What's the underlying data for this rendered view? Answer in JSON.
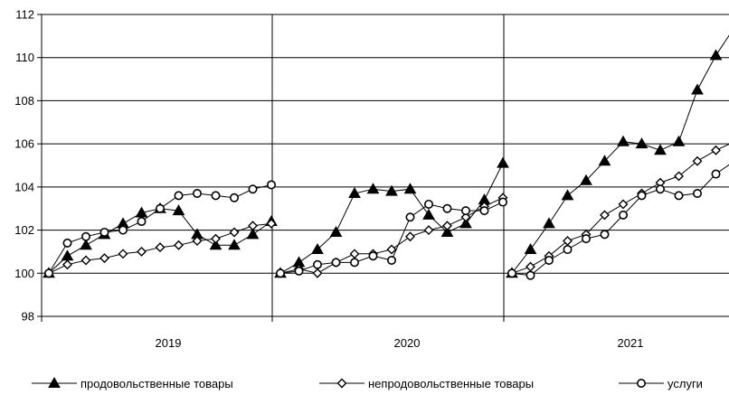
{
  "chart_data": {
    "type": "line",
    "title": "",
    "xlabel": "",
    "ylabel": "",
    "ylim": [
      98,
      112
    ],
    "yticks": [
      98,
      100,
      102,
      104,
      106,
      108,
      110,
      112
    ],
    "grid": "horizontal and year separators",
    "legend_position": "bottom",
    "groups": [
      "2019",
      "2020",
      "2021"
    ],
    "series": [
      {
        "name": "продовольственные товары",
        "marker": "triangle",
        "values": [
          [
            100,
            100.8,
            101.3,
            101.8,
            102.3,
            102.8,
            103.0,
            102.9,
            101.8,
            101.3,
            101.3,
            101.8,
            102.4
          ],
          [
            100,
            100.5,
            101.1,
            101.9,
            103.7,
            103.9,
            103.8,
            103.9,
            102.7,
            101.9,
            102.3,
            103.4,
            105.1
          ],
          [
            100,
            101.1,
            102.3,
            103.6,
            104.3,
            105.2,
            106.1,
            106.0,
            105.7,
            106.1,
            108.5,
            110.1,
            111.4
          ]
        ]
      },
      {
        "name": "непродовольственные товары",
        "marker": "diamond",
        "values": [
          [
            100,
            100.4,
            100.6,
            100.7,
            100.9,
            101.0,
            101.2,
            101.3,
            101.5,
            101.6,
            101.9,
            102.2,
            102.3
          ],
          [
            100,
            100.2,
            100.0,
            100.5,
            100.9,
            100.9,
            101.1,
            101.7,
            102.0,
            102.2,
            102.6,
            103.1,
            103.5
          ],
          [
            100,
            100.3,
            100.8,
            101.5,
            101.8,
            102.7,
            103.2,
            103.7,
            104.2,
            104.5,
            105.2,
            105.7,
            106.1
          ]
        ]
      },
      {
        "name": "услуги",
        "marker": "circle",
        "values": [
          [
            100,
            101.4,
            101.7,
            101.9,
            102.0,
            102.4,
            103.0,
            103.6,
            103.7,
            103.6,
            103.5,
            103.9,
            104.1
          ],
          [
            100,
            100.1,
            100.4,
            100.5,
            100.5,
            100.8,
            100.6,
            102.6,
            103.2,
            103.0,
            102.9,
            102.9,
            103.3
          ],
          [
            100,
            99.9,
            100.6,
            101.1,
            101.6,
            101.8,
            102.7,
            103.6,
            103.9,
            103.6,
            103.7,
            104.6,
            105.2
          ]
        ]
      }
    ]
  }
}
